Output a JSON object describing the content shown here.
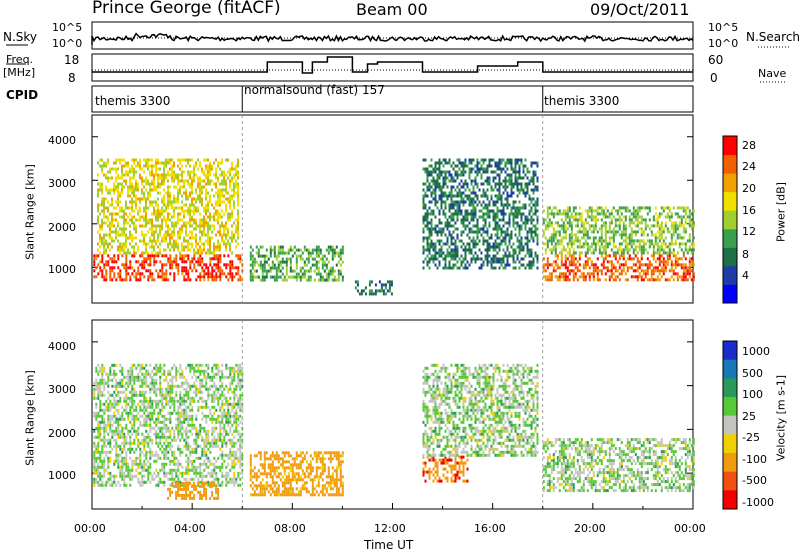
{
  "header": {
    "station": "Prince George (fitACF)",
    "beam": "Beam 00",
    "date": "09/Oct/2011"
  },
  "labels": {
    "nsky": "N.Sky",
    "nsearch": "N.Search",
    "freq_line1": "Freq.",
    "freq_line2": "[MHz]",
    "nave": "Nave",
    "cpid": "CPID",
    "nsky_top": "10^5",
    "nsky_bot": "10^0",
    "nsearch_top": "10^5",
    "nsearch_bot": "10^0",
    "freq_top": "18",
    "freq_bot": "8",
    "nave_top": "60",
    "nave_bot": "0"
  },
  "cpid_segments": [
    {
      "label": "themis 3300",
      "start_hour": 0,
      "end_hour": 6
    },
    {
      "label": "normalsound (fast) 157",
      "start_hour": 6,
      "end_hour": 18
    },
    {
      "label": "themis 3300",
      "start_hour": 18,
      "end_hour": 24
    }
  ],
  "chart_data": [
    {
      "type": "heatmap",
      "title": "Power",
      "xlabel": "",
      "ylabel": "Slant Range [km]",
      "xlim": [
        0,
        24
      ],
      "ylim": [
        180,
        4500
      ],
      "yticks": [
        "1000",
        "2000",
        "3000",
        "4000"
      ],
      "colorbar": {
        "label": "Power [dB]",
        "ticks": [
          "4",
          "8",
          "12",
          "16",
          "20",
          "24",
          "28"
        ],
        "range": [
          0,
          30
        ]
      },
      "regions": [
        {
          "x0": 0.05,
          "x1": 6.0,
          "y0": 700,
          "y1": 1300,
          "value": 28
        },
        {
          "x0": 0.2,
          "x1": 5.8,
          "y0": 1300,
          "y1": 3500,
          "value": 18
        },
        {
          "x0": 6.3,
          "x1": 10.0,
          "y0": 700,
          "y1": 1500,
          "value": 12
        },
        {
          "x0": 10.5,
          "x1": 12.0,
          "y0": 400,
          "y1": 700,
          "value": 8
        },
        {
          "x0": 13.2,
          "x1": 17.8,
          "y0": 1000,
          "y1": 3500,
          "value": 8
        },
        {
          "x0": 18.0,
          "x1": 24.0,
          "y0": 700,
          "y1": 1300,
          "value": 26
        },
        {
          "x0": 18.0,
          "x1": 24.0,
          "y0": 1300,
          "y1": 2400,
          "value": 14
        }
      ]
    },
    {
      "type": "heatmap",
      "title": "Velocity",
      "xlabel": "Time UT",
      "ylabel": "Slant Range [km]",
      "xlim": [
        0,
        24
      ],
      "ylim": [
        180,
        4500
      ],
      "xticks": [
        "00:00",
        "04:00",
        "08:00",
        "12:00",
        "16:00",
        "20:00",
        "00:00"
      ],
      "yticks": [
        "1000",
        "2000",
        "3000",
        "4000"
      ],
      "colorbar": {
        "label": "Velocity [m s-1]",
        "ticks": [
          "1000",
          "500",
          "100",
          "25",
          "-25",
          "-100",
          "-500",
          "-1000"
        ]
      },
      "regions": [
        {
          "x0": 0.05,
          "x1": 6.0,
          "y0": 700,
          "y1": 3500,
          "value": 0
        },
        {
          "x0": 3.0,
          "x1": 5.0,
          "y0": 400,
          "y1": 800,
          "value": -300
        },
        {
          "x0": 6.3,
          "x1": 10.0,
          "y0": 500,
          "y1": 1500,
          "value": -200
        },
        {
          "x0": 13.2,
          "x1": 15.0,
          "y0": 800,
          "y1": 1400,
          "value": -400
        },
        {
          "x0": 13.2,
          "x1": 17.8,
          "y0": 1400,
          "y1": 3500,
          "value": 0
        },
        {
          "x0": 18.0,
          "x1": 24.0,
          "y0": 600,
          "y1": 1800,
          "value": 0
        }
      ]
    }
  ],
  "colors": {
    "power": [
      "#0000ff",
      "#1e3ca8",
      "#1e6e46",
      "#3aa050",
      "#a0d030",
      "#f0e000",
      "#f0a000",
      "#f06000",
      "#ff0000"
    ],
    "velocity": [
      "#1a2ccc",
      "#1878b8",
      "#2a9a5a",
      "#58c838",
      "#c4c4c0",
      "#f0d000",
      "#f09a10",
      "#f05010",
      "#f00000"
    ]
  }
}
